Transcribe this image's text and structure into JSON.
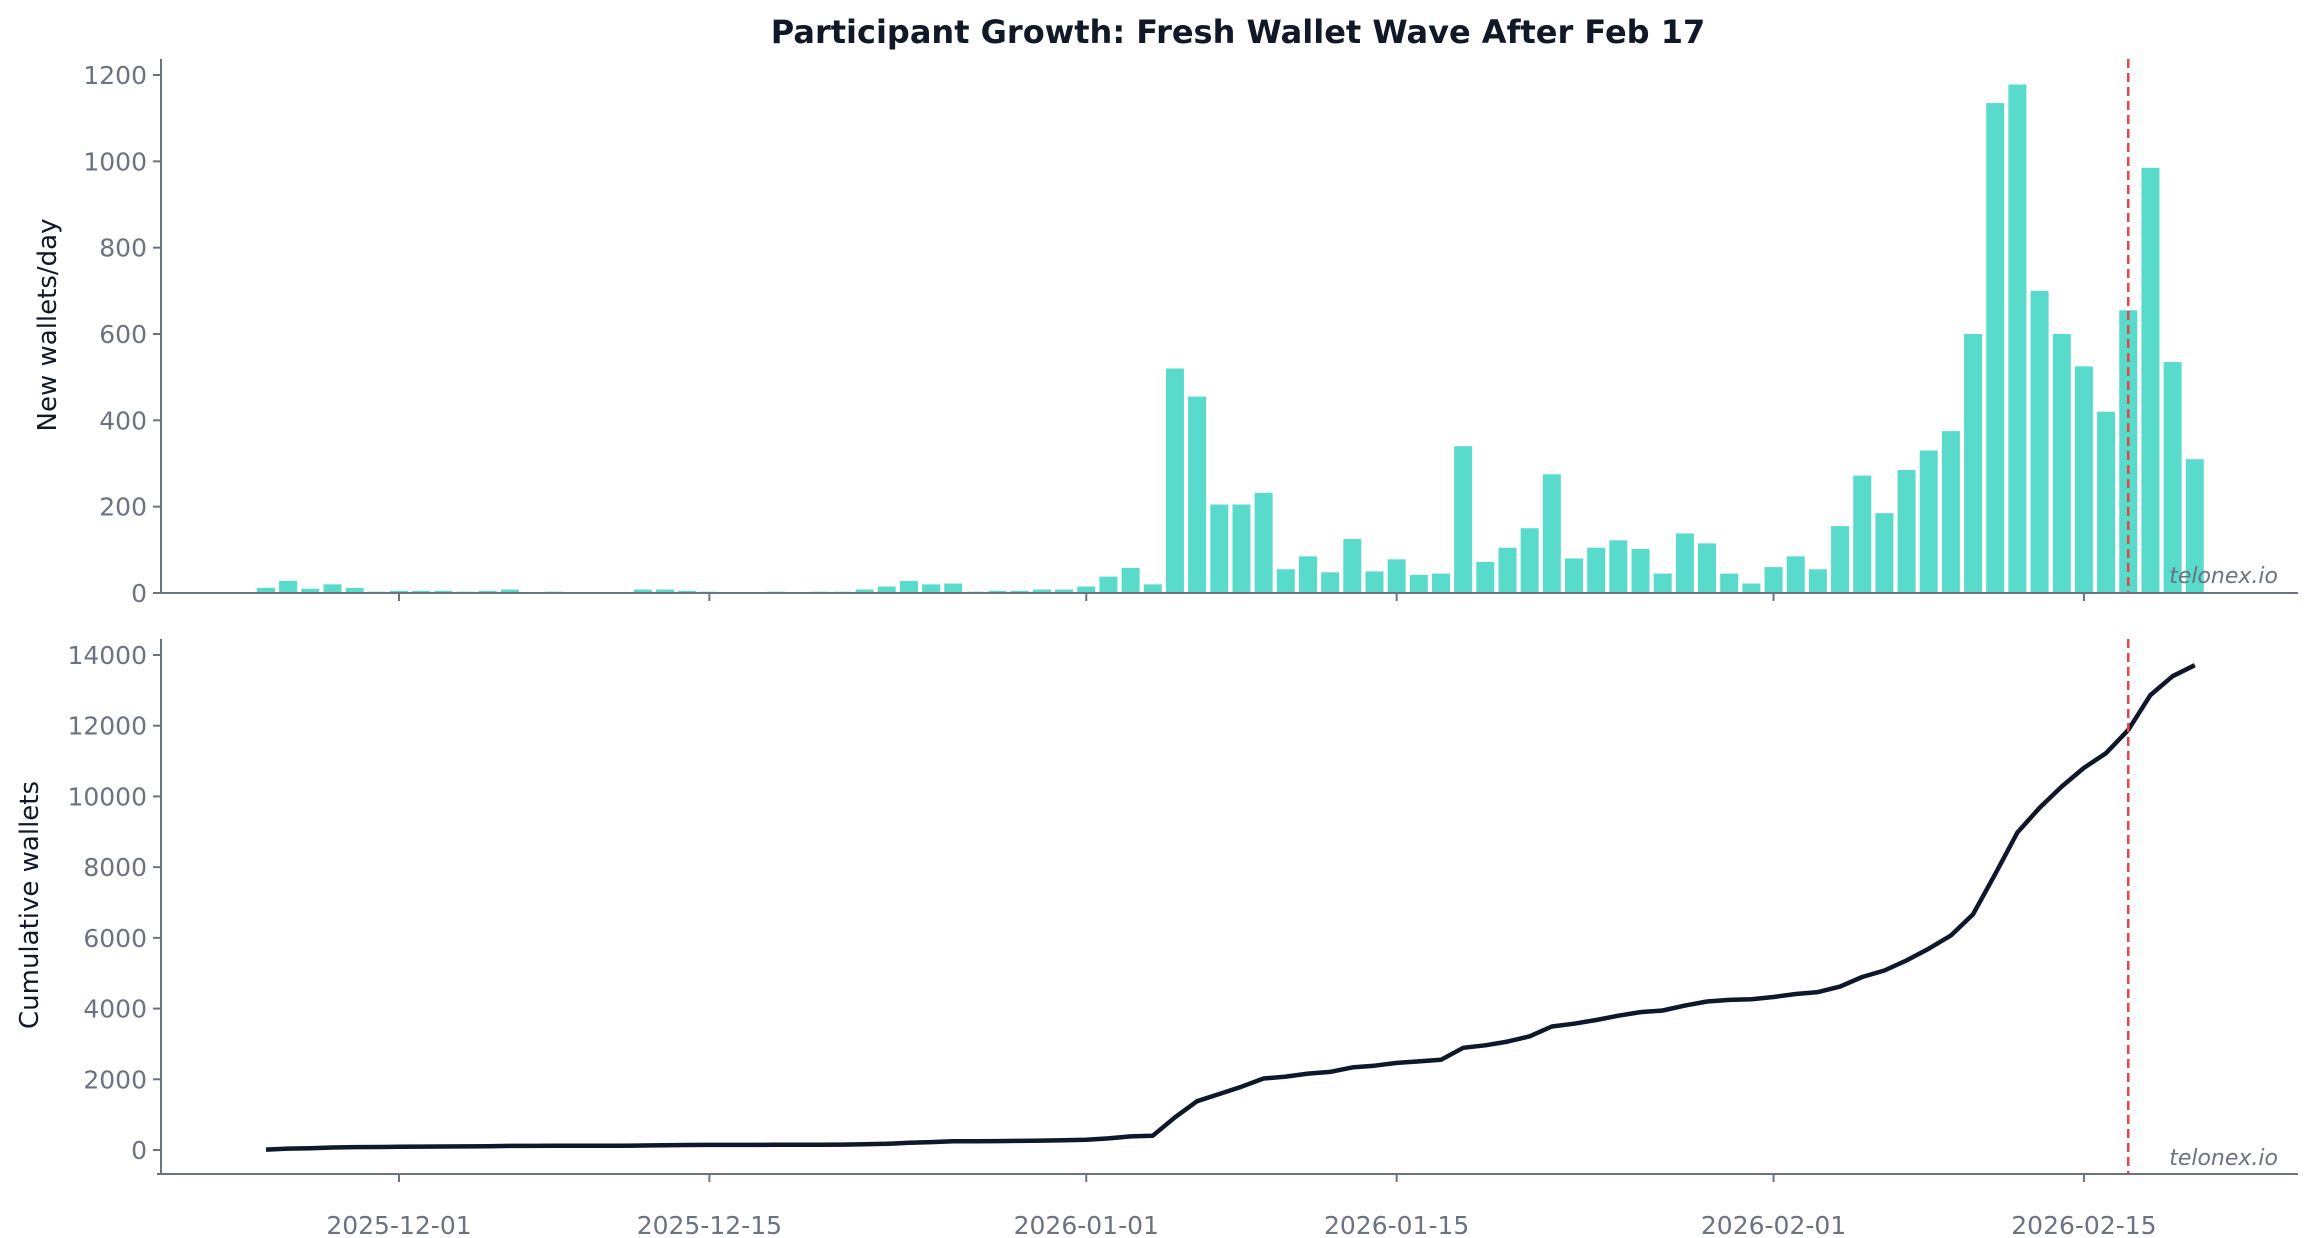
{
  "chart_data": [
    {
      "type": "bar",
      "title": "Participant Growth: Fresh Wallet Wave After Feb 17",
      "ylabel": "New wallets/day",
      "xlabel": "",
      "ylim": [
        0,
        1240
      ],
      "yticks": [
        0,
        200,
        400,
        600,
        800,
        1000,
        1200
      ],
      "xticks": [
        "2025-12-01",
        "2025-12-15",
        "2026-01-01",
        "2026-01-15",
        "2026-02-01",
        "2026-02-15"
      ],
      "x_range": [
        "2025-11-20",
        "2026-02-24"
      ],
      "grid": false,
      "bar_color": "#58dbca",
      "vline": {
        "x": "2026-02-17",
        "color": "#e04848",
        "style": "dashed"
      },
      "watermark": "telonex.io",
      "x": [
        "2025-11-25",
        "2025-11-26",
        "2025-11-27",
        "2025-11-28",
        "2025-11-29",
        "2025-11-30",
        "2025-12-01",
        "2025-12-02",
        "2025-12-03",
        "2025-12-04",
        "2025-12-05",
        "2025-12-06",
        "2025-12-07",
        "2025-12-08",
        "2025-12-09",
        "2025-12-10",
        "2025-12-11",
        "2025-12-12",
        "2025-12-13",
        "2025-12-14",
        "2025-12-15",
        "2025-12-16",
        "2025-12-17",
        "2025-12-18",
        "2025-12-19",
        "2025-12-20",
        "2025-12-21",
        "2025-12-22",
        "2025-12-23",
        "2025-12-24",
        "2025-12-25",
        "2025-12-26",
        "2025-12-27",
        "2025-12-28",
        "2025-12-29",
        "2025-12-30",
        "2025-12-31",
        "2026-01-01",
        "2026-01-02",
        "2026-01-03",
        "2026-01-04",
        "2026-01-05",
        "2026-01-06",
        "2026-01-07",
        "2026-01-08",
        "2026-01-09",
        "2026-01-10",
        "2026-01-11",
        "2026-01-12",
        "2026-01-13",
        "2026-01-14",
        "2026-01-15",
        "2026-01-16",
        "2026-01-17",
        "2026-01-18",
        "2026-01-19",
        "2026-01-20",
        "2026-01-21",
        "2026-01-22",
        "2026-01-23",
        "2026-01-24",
        "2026-01-25",
        "2026-01-26",
        "2026-01-27",
        "2026-01-28",
        "2026-01-29",
        "2026-01-30",
        "2026-01-31",
        "2026-02-01",
        "2026-02-02",
        "2026-02-03",
        "2026-02-04",
        "2026-02-05",
        "2026-02-06",
        "2026-02-07",
        "2026-02-08",
        "2026-02-09",
        "2026-02-10",
        "2026-02-11",
        "2026-02-12",
        "2026-02-13",
        "2026-02-14",
        "2026-02-15",
        "2026-02-16",
        "2026-02-17",
        "2026-02-18",
        "2026-02-19",
        "2026-02-20"
      ],
      "values": [
        12,
        28,
        10,
        20,
        12,
        3,
        5,
        5,
        5,
        3,
        5,
        8,
        0,
        3,
        0,
        0,
        0,
        8,
        8,
        5,
        3,
        0,
        0,
        3,
        0,
        3,
        3,
        8,
        15,
        28,
        20,
        22,
        3,
        5,
        5,
        8,
        8,
        15,
        38,
        58,
        20,
        520,
        455,
        205,
        205,
        232,
        55,
        85,
        48,
        125,
        50,
        78,
        42,
        45,
        340,
        72,
        105,
        150,
        275,
        80,
        105,
        122,
        102,
        45,
        138,
        115,
        45,
        22,
        60,
        85,
        55,
        155,
        272,
        185,
        285,
        330,
        375,
        600,
        1135,
        1178,
        700,
        600,
        525,
        420,
        655,
        985,
        535,
        310
      ]
    },
    {
      "type": "line",
      "ylabel": "Cumulative wallets",
      "xlabel": "",
      "ylim": [
        -600,
        14400
      ],
      "yticks": [
        0,
        2000,
        4000,
        6000,
        8000,
        10000,
        12000,
        14000
      ],
      "xticks": [
        "2025-12-01",
        "2025-12-15",
        "2026-01-01",
        "2026-01-15",
        "2026-02-01",
        "2026-02-15"
      ],
      "grid": false,
      "line_color": "#0f172a",
      "vline": {
        "x": "2026-02-17",
        "color": "#e04848",
        "style": "dashed"
      },
      "watermark": "telonex.io",
      "values": [
        12,
        40,
        50,
        70,
        82,
        85,
        90,
        95,
        100,
        103,
        108,
        116,
        116,
        119,
        119,
        119,
        119,
        127,
        135,
        140,
        143,
        143,
        143,
        146,
        146,
        149,
        152,
        160,
        175,
        203,
        223,
        245,
        248,
        253,
        258,
        266,
        274,
        289,
        327,
        385,
        405,
        925,
        1380,
        1585,
        1790,
        2022,
        2077,
        2162,
        2210,
        2335,
        2385,
        2463,
        2505,
        2550,
        2890,
        2962,
        3067,
        3217,
        3492,
        3572,
        3677,
        3799,
        3901,
        3946,
        4084,
        4199,
        4244,
        4266,
        4326,
        4411,
        4466,
        4621,
        4893,
        5078,
        5363,
        5693,
        6068,
        6668,
        7803,
        8981,
        9681,
        10281,
        10806,
        11226,
        11881,
        12866,
        13401,
        13711
      ]
    }
  ]
}
